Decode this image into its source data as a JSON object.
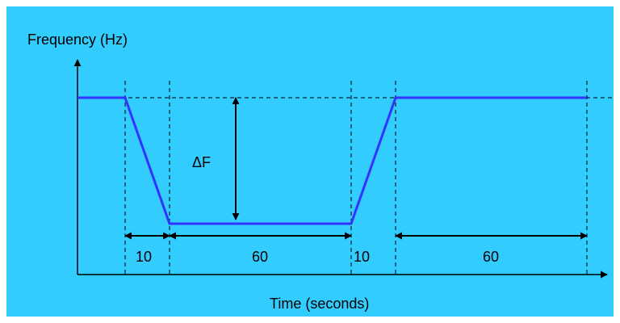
{
  "diagram": {
    "y_axis_label": "Frequency (Hz)",
    "x_axis_label": "Time (seconds)",
    "delta_label": "ΔF",
    "segment_labels": [
      "10",
      "60",
      "10",
      "60"
    ],
    "colors": {
      "background": "#33ccff",
      "signal": "#3333ff",
      "lines": "#000000"
    }
  }
}
